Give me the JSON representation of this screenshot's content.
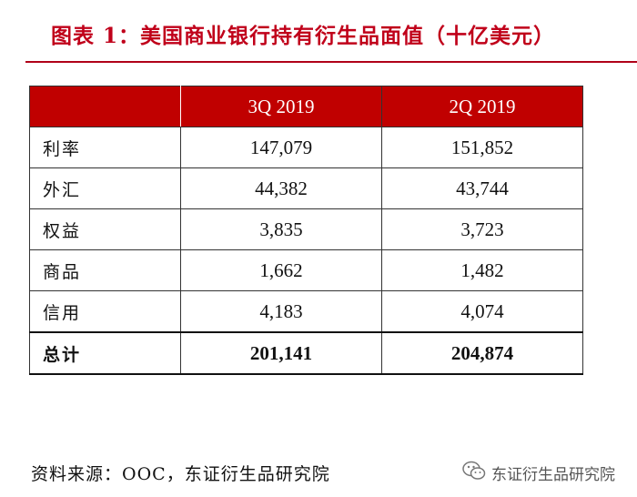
{
  "title": "图表 1：美国商业银行持有衍生品面值（十亿美元）",
  "table": {
    "headers": [
      "",
      "3Q 2019",
      "2Q 2019"
    ],
    "rows": [
      {
        "label": "利率",
        "q3": "147,079",
        "q2": "151,852"
      },
      {
        "label": "外汇",
        "q3": "44,382",
        "q2": "43,744"
      },
      {
        "label": "权益",
        "q3": "3,835",
        "q2": "3,723"
      },
      {
        "label": "商品",
        "q3": "1,662",
        "q2": "1,482"
      },
      {
        "label": "信用",
        "q3": "4,183",
        "q2": "4,074"
      }
    ],
    "total": {
      "label": "总计",
      "q3": "201,141",
      "q2": "204,874"
    }
  },
  "source": "资料来源：OOC，东证衍生品研究院",
  "watermark": {
    "text": "东证衍生品研究院",
    "icon": "wechat-icon"
  },
  "colors": {
    "title": "#c0001a",
    "header_bg": "#c00000",
    "header_text": "#ffffff"
  }
}
